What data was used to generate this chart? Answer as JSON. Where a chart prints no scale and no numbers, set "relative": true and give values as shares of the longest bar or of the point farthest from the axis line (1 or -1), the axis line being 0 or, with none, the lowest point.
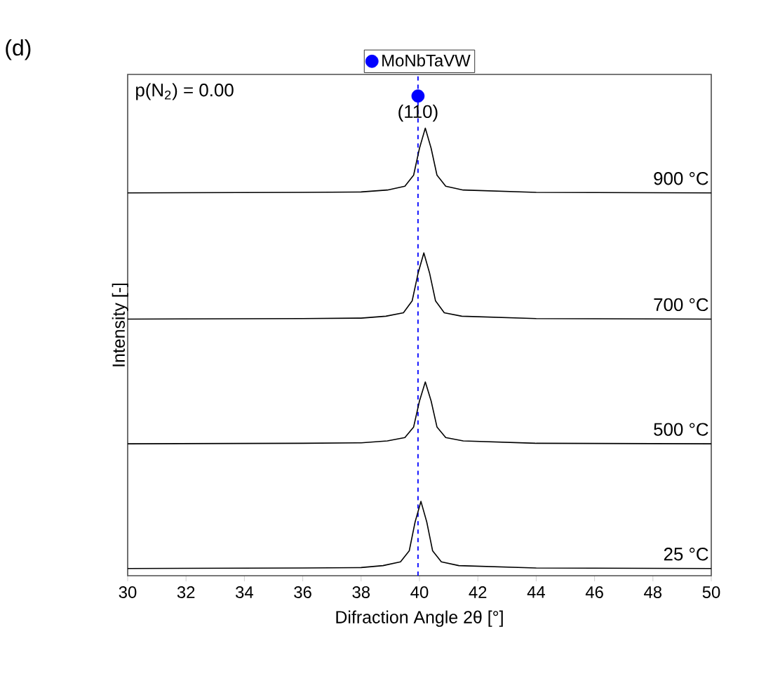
{
  "chart_data": {
    "type": "line",
    "xlabel": "Difraction Angle 2θ [°]",
    "ylabel": "Intensity [-]",
    "xlim": [
      30,
      50
    ],
    "xticks": [
      30,
      32,
      34,
      36,
      38,
      40,
      42,
      44,
      46,
      48,
      50
    ],
    "relative": true,
    "legend": "top",
    "series": [
      {
        "name": "25 °C",
        "color": "#000000",
        "x": [
          30,
          36,
          38,
          38.75,
          39.35,
          39.65,
          39.85,
          40.05,
          40.25,
          40.45,
          40.75,
          41.35,
          44,
          50
        ],
        "values": [
          0.015,
          0.016,
          0.017,
          0.021,
          0.029,
          0.052,
          0.112,
          0.155,
          0.112,
          0.052,
          0.029,
          0.021,
          0.016,
          0.015
        ]
      },
      {
        "name": "500 °C",
        "color": "#000000",
        "x": [
          30,
          36,
          38,
          38.9,
          39.5,
          39.8,
          40.0,
          40.2,
          40.4,
          40.6,
          40.9,
          41.5,
          44,
          50
        ],
        "values": [
          0.275,
          0.276,
          0.277,
          0.281,
          0.288,
          0.31,
          0.364,
          0.404,
          0.364,
          0.31,
          0.288,
          0.281,
          0.276,
          0.275
        ]
      },
      {
        "name": "700 °C",
        "color": "#000000",
        "x": [
          30,
          36,
          38,
          38.85,
          39.45,
          39.75,
          39.95,
          40.15,
          40.35,
          40.55,
          40.85,
          41.45,
          44,
          50
        ],
        "values": [
          0.535,
          0.536,
          0.537,
          0.541,
          0.548,
          0.573,
          0.63,
          0.673,
          0.63,
          0.573,
          0.548,
          0.541,
          0.536,
          0.535
        ]
      },
      {
        "name": "900 °C",
        "color": "#000000",
        "x": [
          30,
          36,
          38,
          38.9,
          39.5,
          39.8,
          40.0,
          40.2,
          40.4,
          40.6,
          40.9,
          41.5,
          44,
          50
        ],
        "values": [
          0.798,
          0.799,
          0.8,
          0.804,
          0.812,
          0.835,
          0.891,
          0.933,
          0.891,
          0.835,
          0.812,
          0.804,
          0.799,
          0.798
        ]
      },
      {
        "type": "scatter",
        "name": "MoNbTaVW",
        "color": "#0000ff",
        "x": [
          39.95
        ],
        "values": [
          1.0
        ]
      }
    ],
    "ref_lines": [
      {
        "axis": "x",
        "value": 39.95,
        "color": "#0000ff",
        "line_style": "dashed"
      }
    ],
    "annotations": [
      "(d)",
      "p(N$_{2}$) = 0.00",
      "(110)"
    ]
  }
}
